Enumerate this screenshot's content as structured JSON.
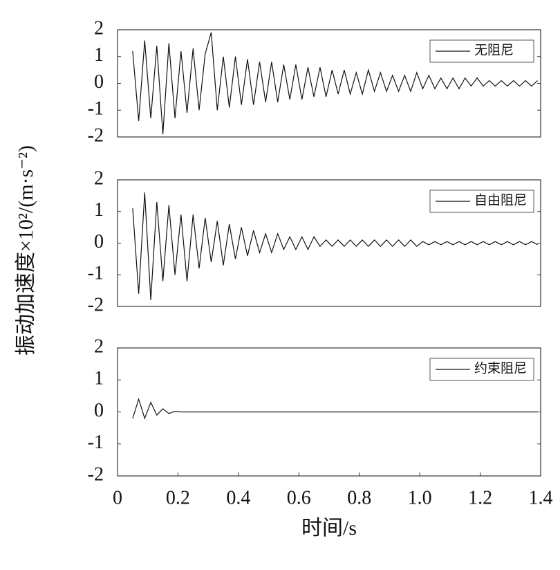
{
  "y_label": "振动加速度×10²/(m·s⁻²)",
  "x_label": "时间/s",
  "chart_data": [
    {
      "type": "line",
      "xlim": [
        0,
        1.4
      ],
      "ylim": [
        -2,
        2
      ],
      "yticks": [
        -2,
        -1,
        0,
        1,
        2
      ],
      "x": [
        0.05,
        0.07,
        0.09,
        0.11,
        0.13,
        0.15,
        0.17,
        0.19,
        0.21,
        0.23,
        0.25,
        0.27,
        0.29,
        0.31,
        0.33,
        0.35,
        0.37,
        0.39,
        0.41,
        0.43,
        0.45,
        0.47,
        0.49,
        0.51,
        0.53,
        0.55,
        0.57,
        0.59,
        0.61,
        0.63,
        0.65,
        0.67,
        0.69,
        0.71,
        0.73,
        0.75,
        0.77,
        0.79,
        0.81,
        0.83,
        0.85,
        0.87,
        0.89,
        0.91,
        0.93,
        0.95,
        0.97,
        0.99,
        1.01,
        1.03,
        1.05,
        1.07,
        1.09,
        1.11,
        1.13,
        1.15,
        1.17,
        1.19,
        1.21,
        1.23,
        1.25,
        1.27,
        1.29,
        1.31,
        1.33,
        1.35,
        1.37,
        1.39
      ],
      "series": [
        {
          "name": "无阻尼",
          "color": "#111111",
          "values": [
            1.2,
            -1.4,
            1.6,
            -1.3,
            1.4,
            -1.9,
            1.5,
            -1.3,
            1.2,
            -1.1,
            1.3,
            -1.0,
            1.1,
            1.9,
            -1.0,
            1.0,
            -0.9,
            1.0,
            -0.8,
            0.9,
            -0.8,
            0.8,
            -0.7,
            0.8,
            -0.7,
            0.7,
            -0.6,
            0.7,
            -0.6,
            0.6,
            -0.5,
            0.6,
            -0.5,
            0.5,
            -0.4,
            0.5,
            -0.4,
            0.4,
            -0.4,
            0.5,
            -0.3,
            0.4,
            -0.3,
            0.3,
            -0.3,
            0.3,
            -0.3,
            0.4,
            -0.2,
            0.3,
            -0.2,
            0.2,
            -0.2,
            0.2,
            -0.2,
            0.2,
            -0.1,
            0.2,
            -0.1,
            0.1,
            -0.1,
            0.1,
            -0.1,
            0.1,
            -0.1,
            0.1,
            -0.1,
            0.1
          ]
        }
      ]
    },
    {
      "type": "line",
      "xlim": [
        0,
        1.4
      ],
      "ylim": [
        -2,
        2
      ],
      "yticks": [
        -2,
        -1,
        0,
        1,
        2
      ],
      "x": [
        0.05,
        0.07,
        0.09,
        0.11,
        0.13,
        0.15,
        0.17,
        0.19,
        0.21,
        0.23,
        0.25,
        0.27,
        0.29,
        0.31,
        0.33,
        0.35,
        0.37,
        0.39,
        0.41,
        0.43,
        0.45,
        0.47,
        0.49,
        0.51,
        0.53,
        0.55,
        0.57,
        0.59,
        0.61,
        0.63,
        0.65,
        0.67,
        0.69,
        0.71,
        0.73,
        0.75,
        0.77,
        0.79,
        0.81,
        0.83,
        0.85,
        0.87,
        0.89,
        0.91,
        0.93,
        0.95,
        0.97,
        0.99,
        1.01,
        1.03,
        1.05,
        1.07,
        1.09,
        1.11,
        1.13,
        1.15,
        1.17,
        1.19,
        1.21,
        1.23,
        1.25,
        1.27,
        1.29,
        1.31,
        1.33,
        1.35,
        1.37,
        1.39
      ],
      "series": [
        {
          "name": "自由阻尼",
          "color": "#111111",
          "values": [
            1.1,
            -1.6,
            1.6,
            -1.8,
            1.3,
            -1.2,
            1.2,
            -1.0,
            0.9,
            -1.2,
            0.9,
            -0.8,
            0.8,
            -0.6,
            0.7,
            -0.7,
            0.6,
            -0.5,
            0.5,
            -0.4,
            0.4,
            -0.3,
            0.3,
            -0.3,
            0.3,
            -0.2,
            0.2,
            -0.2,
            0.2,
            -0.2,
            0.2,
            -0.1,
            0.1,
            -0.1,
            0.1,
            -0.1,
            0.1,
            -0.1,
            0.1,
            -0.1,
            0.1,
            -0.1,
            0.1,
            -0.1,
            0.1,
            -0.1,
            0.1,
            -0.1,
            0.05,
            -0.05,
            0.05,
            -0.05,
            0.05,
            -0.05,
            0.05,
            -0.05,
            0.05,
            -0.05,
            0.05,
            -0.05,
            0.05,
            -0.05,
            0.05,
            -0.05,
            0.05,
            -0.05,
            0.05,
            -0.05
          ]
        }
      ]
    },
    {
      "type": "line",
      "xlim": [
        0,
        1.4
      ],
      "ylim": [
        -2,
        2
      ],
      "yticks": [
        -2,
        -1,
        0,
        1,
        2
      ],
      "xticks": [
        0,
        0.2,
        0.4,
        0.6,
        0.8,
        {
          "value": 1,
          "label": "1.0"
        },
        1.2,
        1.4
      ],
      "x": [
        0.05,
        0.07,
        0.09,
        0.11,
        0.13,
        0.15,
        0.17,
        0.19,
        0.21,
        0.23,
        0.25,
        0.27,
        0.29,
        0.31,
        0.33,
        0.35,
        0.37,
        0.39,
        0.41,
        0.43,
        0.45,
        0.47,
        0.49,
        0.51,
        0.53,
        0.55,
        0.57,
        0.59,
        0.61,
        0.63,
        0.65,
        0.67,
        0.69,
        0.71,
        0.73,
        0.75,
        0.77,
        0.79,
        0.81,
        0.83,
        0.85,
        0.87,
        0.89,
        0.91,
        0.93,
        0.95,
        0.97,
        0.99,
        1.01,
        1.03,
        1.05,
        1.07,
        1.09,
        1.11,
        1.13,
        1.15,
        1.17,
        1.19,
        1.21,
        1.23,
        1.25,
        1.27,
        1.29,
        1.31,
        1.33,
        1.35,
        1.37,
        1.39
      ],
      "series": [
        {
          "name": "约束阻尼",
          "color": "#111111",
          "values": [
            -0.2,
            0.4,
            -0.2,
            0.3,
            -0.1,
            0.1,
            -0.05,
            0.02,
            0,
            0,
            0,
            0,
            0,
            0,
            0,
            0,
            0,
            0,
            0,
            0,
            0,
            0,
            0,
            0,
            0,
            0,
            0,
            0,
            0,
            0,
            0,
            0,
            0,
            0,
            0,
            0,
            0,
            0,
            0,
            0,
            0,
            0,
            0,
            0,
            0,
            0,
            0,
            0,
            0,
            0,
            0,
            0,
            0,
            0,
            0,
            0,
            0,
            0,
            0,
            0,
            0,
            0,
            0,
            0,
            0,
            0,
            0,
            0
          ]
        }
      ]
    }
  ]
}
